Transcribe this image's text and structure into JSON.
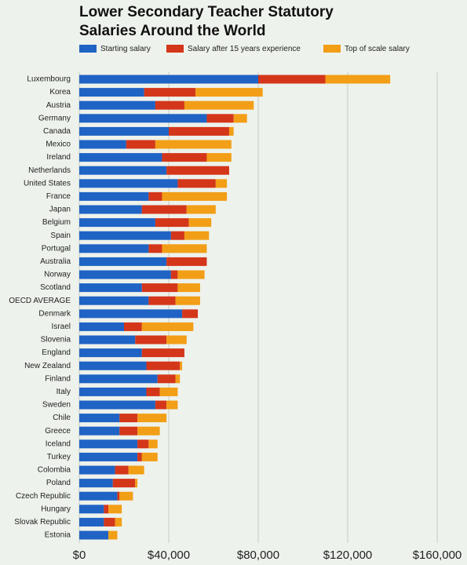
{
  "chart_data": {
    "type": "stacked_barh",
    "title": "Lower Secondary Teacher Statutory Salaries Around the World",
    "categories": [
      "Luxembourg",
      "Korea",
      "Austria",
      "Germany",
      "Canada",
      "Mexico",
      "Ireland",
      "Netherlands",
      "United States",
      "France",
      "Japan",
      "Belgium",
      "Spain",
      "Portugal",
      "Australia",
      "Norway",
      "Scotland",
      "OECD AVERAGE",
      "Denmark",
      "Israel",
      "Slovenia",
      "England",
      "New Zealand",
      "Finland",
      "Italy",
      "Sweden",
      "Chile",
      "Greece",
      "Iceland",
      "Turkey",
      "Colombia",
      "Poland",
      "Czech Republic",
      "Hungary",
      "Slovak Republic",
      "Estonia"
    ],
    "series": [
      {
        "name": "Starting salary",
        "color": "#1f63c4",
        "values": [
          80000,
          29000,
          34000,
          57000,
          40000,
          21000,
          37000,
          39000,
          44000,
          31000,
          28000,
          34000,
          41000,
          31000,
          39000,
          41000,
          28000,
          31000,
          46000,
          20000,
          25000,
          28000,
          30000,
          35000,
          30000,
          34000,
          18000,
          18000,
          26000,
          26000,
          16000,
          15000,
          17000,
          11000,
          11000,
          13000
        ]
      },
      {
        "name": "Salary after 15 years experience",
        "color": "#d4361a",
        "values": [
          30000,
          23000,
          13000,
          12000,
          27000,
          13000,
          20000,
          28000,
          17000,
          6000,
          20000,
          15000,
          6000,
          6000,
          18000,
          3000,
          16000,
          12000,
          7000,
          8000,
          14000,
          19000,
          15000,
          8000,
          6000,
          5000,
          8000,
          8000,
          5000,
          2000,
          6000,
          10000,
          1000,
          2000,
          5000,
          0
        ]
      },
      {
        "name": "Top of scale salary",
        "color": "#f29e16",
        "values": [
          29000,
          30000,
          31000,
          6000,
          2000,
          34000,
          11000,
          0,
          5000,
          29000,
          13000,
          10000,
          11000,
          20000,
          0,
          12000,
          10000,
          11000,
          0,
          23000,
          9000,
          0,
          1000,
          2000,
          8000,
          5000,
          13000,
          10000,
          4000,
          7000,
          7000,
          1000,
          6000,
          6000,
          3000,
          4000
        ]
      }
    ],
    "xlim": [
      0,
      160000
    ],
    "xticks": [
      {
        "value": 0,
        "label": "$0"
      },
      {
        "value": 40000,
        "label": "$40,000"
      },
      {
        "value": 80000,
        "label": "$80,000"
      },
      {
        "value": 120000,
        "label": "$120,000"
      },
      {
        "value": 160000,
        "label": "$160,000"
      }
    ],
    "grid": true,
    "legend": "top"
  }
}
